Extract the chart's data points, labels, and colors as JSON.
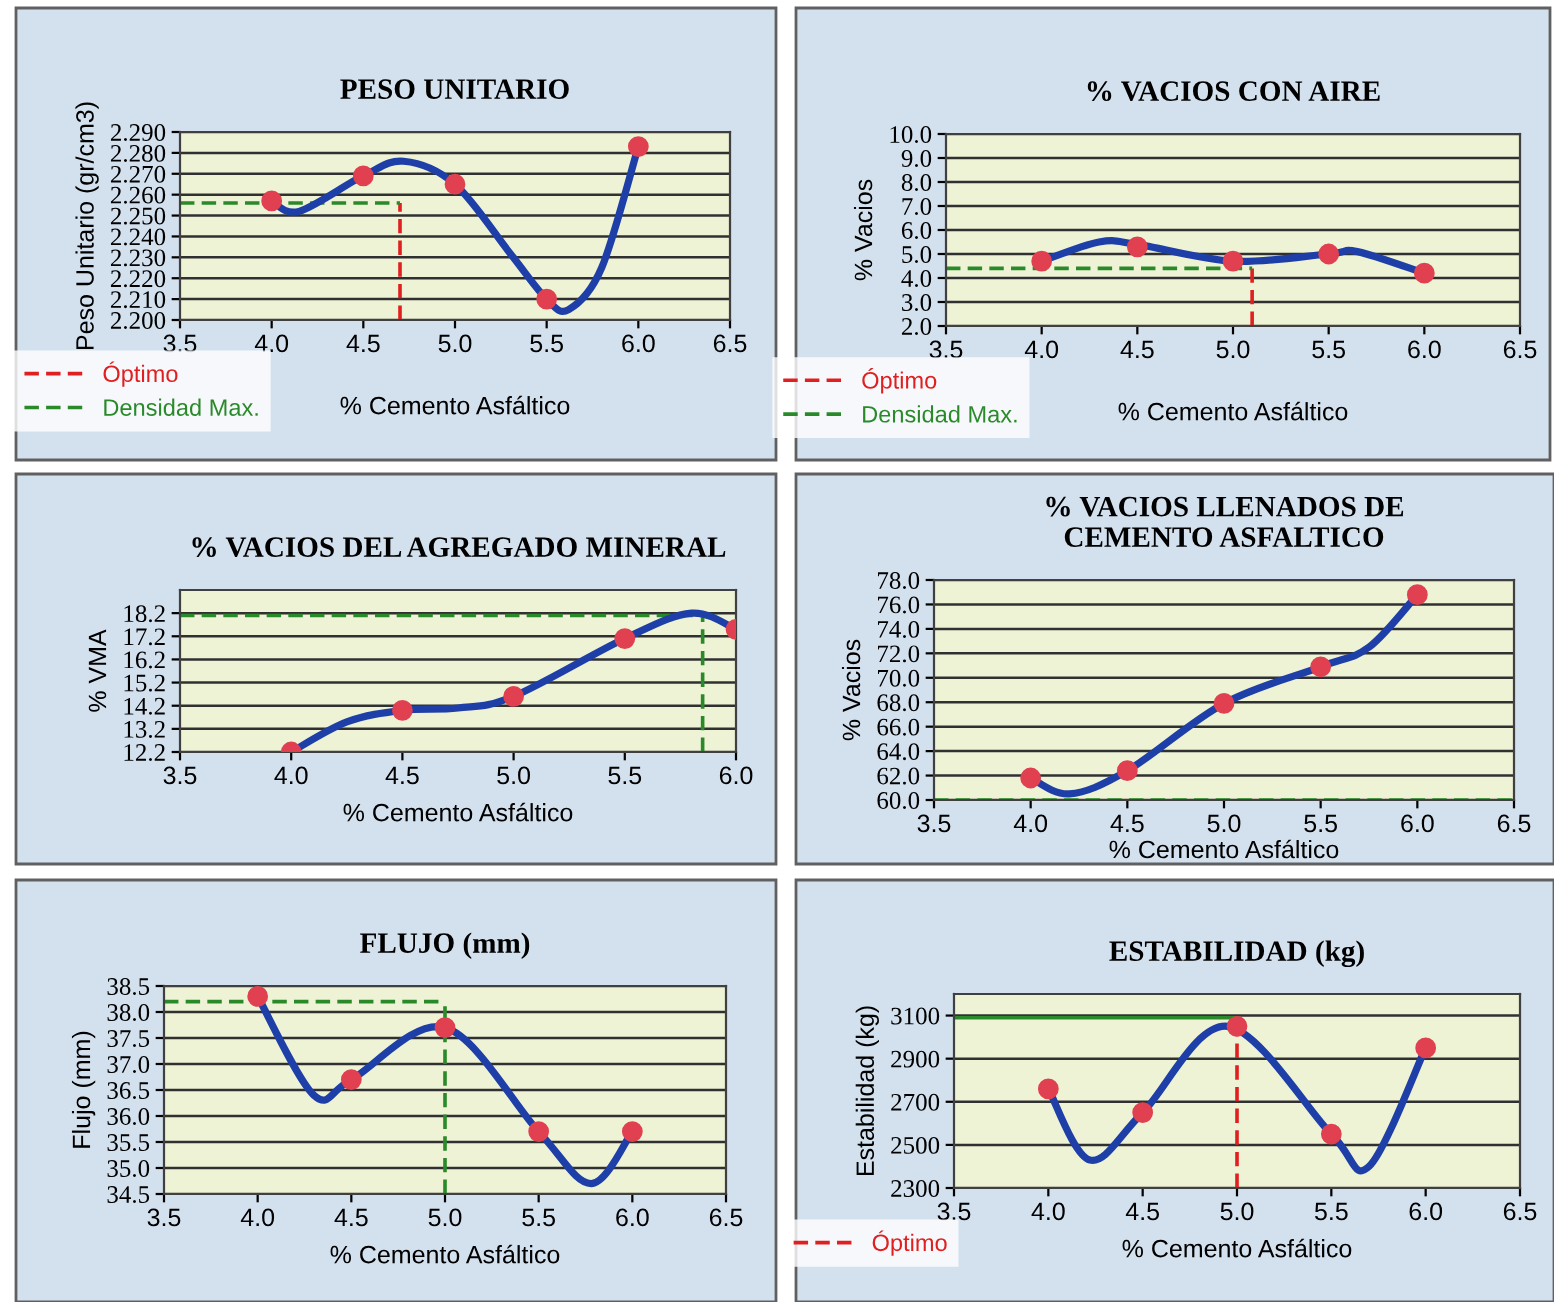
{
  "chart_data": [
    {
      "type": "line",
      "title": "PESO UNITARIO",
      "xlabel": "% Cemento Asfáltico",
      "ylabel": "Peso Unitario (gr/cm3)",
      "x": [
        4.0,
        4.5,
        5.0,
        5.5,
        6.0
      ],
      "xlim": [
        3.5,
        6.5
      ],
      "xticks": [
        {
          "value": 3.5,
          "label": "3.5"
        },
        {
          "value": 4.0,
          "label": "4.0"
        },
        {
          "value": 4.5,
          "label": "4.5"
        },
        {
          "value": 5.0,
          "label": "5.0"
        },
        {
          "value": 5.5,
          "label": "5.5"
        },
        {
          "value": 6.0,
          "label": "6.0"
        },
        {
          "value": 6.5,
          "label": "6.5"
        }
      ],
      "ylim": [
        2.2,
        2.29
      ],
      "yticks": [
        {
          "value": 2.2,
          "label": "2.200"
        },
        {
          "value": 2.21,
          "label": "2.210"
        },
        {
          "value": 2.22,
          "label": "2.220"
        },
        {
          "value": 2.23,
          "label": "2.230"
        },
        {
          "value": 2.24,
          "label": "2.240"
        },
        {
          "value": 2.25,
          "label": "2.250"
        },
        {
          "value": 2.26,
          "label": "2.260"
        },
        {
          "value": 2.27,
          "label": "2.270"
        },
        {
          "value": 2.28,
          "label": "2.280"
        },
        {
          "value": 2.29,
          "label": "2.290"
        }
      ],
      "grid": "y",
      "legend": "bottom left",
      "series": [
        {
          "type": "line",
          "color": "#1f3fa8",
          "x": [
            4.0,
            4.15,
            4.5,
            4.72,
            5.0,
            5.3,
            5.5,
            5.62,
            5.8,
            6.0
          ],
          "values": [
            2.257,
            2.252,
            2.269,
            2.276,
            2.265,
            2.232,
            2.21,
            2.205,
            2.225,
            2.283
          ]
        },
        {
          "type": "scatter",
          "color": "#e04050",
          "marker": "circle",
          "values": [
            2.257,
            2.269,
            2.265,
            2.21,
            2.283
          ]
        }
      ],
      "ref_lines": [
        {
          "axis": "x",
          "value": 4.7,
          "label": "Óptimo",
          "color": "#e02020",
          "line_style": "dashed"
        },
        {
          "axis": "y",
          "value": 2.256,
          "label": "Densidad Max.",
          "color": "#2a8a2a",
          "line_style": "dashed"
        }
      ]
    },
    {
      "type": "line",
      "title": "% VACIOS CON AIRE",
      "xlabel": "% Cemento Asfáltico",
      "ylabel": "% Vacios",
      "x": [
        4.0,
        4.5,
        5.0,
        5.5,
        6.0
      ],
      "xlim": [
        3.5,
        6.5
      ],
      "xticks": [
        {
          "value": 3.5,
          "label": "3.5"
        },
        {
          "value": 4.0,
          "label": "4.0"
        },
        {
          "value": 4.5,
          "label": "4.5"
        },
        {
          "value": 5.0,
          "label": "5.0"
        },
        {
          "value": 5.5,
          "label": "5.5"
        },
        {
          "value": 6.0,
          "label": "6.0"
        },
        {
          "value": 6.5,
          "label": "6.5"
        }
      ],
      "ylim": [
        2.0,
        10.0
      ],
      "yticks": [
        {
          "value": 2,
          "label": "2.0"
        },
        {
          "value": 3,
          "label": "3.0"
        },
        {
          "value": 4,
          "label": "4.0"
        },
        {
          "value": 5,
          "label": "5.0"
        },
        {
          "value": 6,
          "label": "6.0"
        },
        {
          "value": 7,
          "label": "7.0"
        },
        {
          "value": 8,
          "label": "8.0"
        },
        {
          "value": 9,
          "label": "9.0"
        },
        {
          "value": 10,
          "label": "10.0"
        }
      ],
      "grid": "y",
      "legend": "bottom left",
      "series": [
        {
          "type": "line",
          "color": "#1f3fa8",
          "x": [
            4.0,
            4.3,
            4.5,
            5.0,
            5.5,
            5.65,
            6.0
          ],
          "values": [
            4.7,
            5.5,
            5.4,
            4.7,
            5.0,
            5.1,
            4.2
          ]
        },
        {
          "type": "scatter",
          "color": "#e04050",
          "marker": "circle",
          "values": [
            4.7,
            5.3,
            4.7,
            5.0,
            4.2
          ]
        }
      ],
      "ref_lines": [
        {
          "axis": "x",
          "value": 5.1,
          "label": "Óptimo",
          "color": "#e02020",
          "line_style": "dashed"
        },
        {
          "axis": "y",
          "value": 4.4,
          "label": "Densidad Max.",
          "color": "#2a8a2a",
          "line_style": "dashed"
        }
      ]
    },
    {
      "type": "line",
      "title": "% VACIOS DEL AGREGADO MINERAL",
      "xlabel": "% Cemento Asfáltico",
      "ylabel": "% VMA",
      "x": [
        4.0,
        4.5,
        5.0,
        5.5,
        6.0
      ],
      "xlim": [
        3.5,
        6.0
      ],
      "xticks": [
        {
          "value": 3.5,
          "label": "3.5"
        },
        {
          "value": 4.0,
          "label": "4.0"
        },
        {
          "value": 4.5,
          "label": "4.5"
        },
        {
          "value": 5.0,
          "label": "5.0"
        },
        {
          "value": 5.5,
          "label": "5.5"
        },
        {
          "value": 6.0,
          "label": "6.0"
        }
      ],
      "ylim": [
        12.2,
        19.2
      ],
      "yticks": [
        12.2,
        13.2,
        14.2,
        15.2,
        16.2,
        17.2,
        18.2
      ],
      "grid": "y",
      "series": [
        {
          "type": "line",
          "color": "#1f3fa8",
          "x": [
            4.0,
            4.25,
            4.5,
            4.75,
            5.0,
            5.5,
            5.8,
            6.0
          ],
          "values": [
            12.2,
            13.5,
            14.0,
            14.1,
            14.6,
            17.1,
            18.2,
            17.5
          ]
        },
        {
          "type": "scatter",
          "color": "#e04050",
          "marker": "circle",
          "values": [
            12.2,
            14.0,
            14.6,
            17.1,
            17.5
          ]
        }
      ],
      "ref_lines": [
        {
          "axis": "x",
          "value": 5.85,
          "color": "#2a8a2a",
          "line_style": "dashed"
        },
        {
          "axis": "y",
          "value": 18.1,
          "color": "#2a8a2a",
          "line_style": "dashed"
        }
      ]
    },
    {
      "type": "line",
      "title": "% VACIOS LLENADOS DE\nCEMENTO ASFALTICO",
      "xlabel": "% Cemento Asfáltico",
      "ylabel": "% Vacios",
      "x": [
        4.0,
        4.5,
        5.0,
        5.5,
        6.0
      ],
      "xlim": [
        3.5,
        6.5
      ],
      "xticks": [
        {
          "value": 3.5,
          "label": "3.5"
        },
        {
          "value": 4.0,
          "label": "4.0"
        },
        {
          "value": 4.5,
          "label": "4.5"
        },
        {
          "value": 5.0,
          "label": "5.0"
        },
        {
          "value": 5.5,
          "label": "5.5"
        },
        {
          "value": 6.0,
          "label": "6.0"
        },
        {
          "value": 6.5,
          "label": "6.5"
        }
      ],
      "ylim": [
        60.0,
        78.0
      ],
      "yticks": [
        {
          "value": 60,
          "label": "60.0"
        },
        {
          "value": 62,
          "label": "62.0"
        },
        {
          "value": 64,
          "label": "64.0"
        },
        {
          "value": 66,
          "label": "66.0"
        },
        {
          "value": 68,
          "label": "68.0"
        },
        {
          "value": 70,
          "label": "70.0"
        },
        {
          "value": 72,
          "label": "72.0"
        },
        {
          "value": 74,
          "label": "74.0"
        },
        {
          "value": 76,
          "label": "76.0"
        },
        {
          "value": 78,
          "label": "78.0"
        }
      ],
      "grid": "y",
      "series": [
        {
          "type": "line",
          "color": "#1f3fa8",
          "x": [
            4.0,
            4.2,
            4.5,
            5.0,
            5.5,
            5.75,
            6.0
          ],
          "values": [
            61.8,
            60.5,
            62.4,
            67.9,
            70.9,
            72.5,
            76.8
          ]
        },
        {
          "type": "scatter",
          "color": "#e04050",
          "marker": "circle",
          "values": [
            61.8,
            62.4,
            67.9,
            70.9,
            76.8
          ]
        }
      ],
      "ref_lines": [
        {
          "axis": "y",
          "value": 60.0,
          "color": "#2a8a2a",
          "line_style": "dashed"
        }
      ]
    },
    {
      "type": "line",
      "title": "FLUJO (mm)",
      "xlabel": "% Cemento Asfáltico",
      "ylabel": "Flujo (mm)",
      "x": [
        4.0,
        4.5,
        5.0,
        5.5,
        6.0
      ],
      "xlim": [
        3.5,
        6.5
      ],
      "xticks": [
        {
          "value": 3.5,
          "label": "3.5"
        },
        {
          "value": 4.0,
          "label": "4.0"
        },
        {
          "value": 4.5,
          "label": "4.5"
        },
        {
          "value": 5.0,
          "label": "5.0"
        },
        {
          "value": 5.5,
          "label": "5.5"
        },
        {
          "value": 6.0,
          "label": "6.0"
        },
        {
          "value": 6.5,
          "label": "6.5"
        }
      ],
      "ylim": [
        34.5,
        38.5
      ],
      "yticks": [
        34.5,
        {
          "value": 35,
          "label": "35.0"
        },
        35.5,
        {
          "value": 36,
          "label": "36.0"
        },
        36.5,
        {
          "value": 37,
          "label": "37.0"
        },
        37.5,
        {
          "value": 38,
          "label": "38.0"
        },
        38.5
      ],
      "grid": "y",
      "series": [
        {
          "type": "line",
          "color": "#1f3fa8",
          "x": [
            4.0,
            4.3,
            4.5,
            5.0,
            5.5,
            5.78,
            6.0
          ],
          "values": [
            38.3,
            36.4,
            36.7,
            37.7,
            35.7,
            34.7,
            35.7
          ]
        },
        {
          "type": "scatter",
          "color": "#e04050",
          "marker": "circle",
          "values": [
            38.3,
            36.7,
            37.7,
            35.7,
            35.7
          ]
        }
      ],
      "ref_lines": [
        {
          "axis": "x",
          "value": 5.0,
          "color": "#2a8a2a",
          "line_style": "dashed"
        },
        {
          "axis": "y",
          "value": 38.2,
          "color": "#2a8a2a",
          "line_style": "dashed"
        }
      ]
    },
    {
      "type": "line",
      "title": "ESTABILIDAD (kg)",
      "xlabel": "% Cemento Asfáltico",
      "ylabel": "Estabilidad (kg)",
      "x": [
        4.0,
        4.5,
        5.0,
        5.5,
        6.0
      ],
      "xlim": [
        3.5,
        6.5
      ],
      "xticks": [
        {
          "value": 3.5,
          "label": "3.5"
        },
        {
          "value": 4.0,
          "label": "4.0"
        },
        {
          "value": 4.5,
          "label": "4.5"
        },
        {
          "value": 5.0,
          "label": "5.0"
        },
        {
          "value": 5.5,
          "label": "5.5"
        },
        {
          "value": 6.0,
          "label": "6.0"
        },
        {
          "value": 6.5,
          "label": "6.5"
        }
      ],
      "ylim": [
        2300,
        3200
      ],
      "yticks": [
        2300,
        2500,
        2700,
        2900,
        3100
      ],
      "grid": "y",
      "legend": "bottom left",
      "series": [
        {
          "type": "line",
          "color": "#1f3fa8",
          "x": [
            4.0,
            4.22,
            4.5,
            4.95,
            5.5,
            5.7,
            6.0
          ],
          "values": [
            2760,
            2430,
            2650,
            3050,
            2550,
            2400,
            2950
          ]
        },
        {
          "type": "scatter",
          "color": "#e04050",
          "marker": "circle",
          "values": [
            2760,
            2650,
            3050,
            2550,
            2950
          ]
        }
      ],
      "ref_lines": [
        {
          "axis": "x",
          "value": 5.0,
          "label": "Óptimo",
          "color": "#e02020",
          "line_style": "dashed"
        },
        {
          "axis": "y",
          "value": 3090,
          "color": "#2a8a2a",
          "line_style": "solid"
        }
      ]
    }
  ]
}
